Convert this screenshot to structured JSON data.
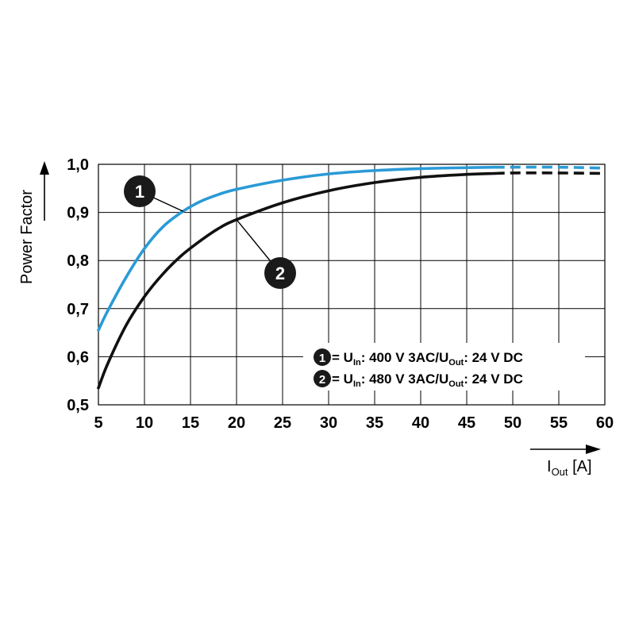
{
  "chart_data": {
    "type": "line",
    "xlabel": "I",
    "xlabel_sub": "Out",
    "xlabel_unit": " [A]",
    "ylabel": "Power Factor",
    "xlim": [
      5,
      60
    ],
    "ylim": [
      0.5,
      1.0
    ],
    "x_ticks": [
      "5",
      "10",
      "15",
      "20",
      "25",
      "30",
      "35",
      "40",
      "45",
      "50",
      "55",
      "60"
    ],
    "y_ticks": [
      "0,5",
      "0,6",
      "0,7",
      "0,8",
      "0,9",
      "1,0"
    ],
    "grid": true,
    "solid_until_x": 48,
    "series": [
      {
        "name": "1",
        "color": "#2a9ad6",
        "legend": {
          "num": "1",
          "prefix": " = U",
          "sub1": "In",
          "mid": ": 400 V 3AC/U",
          "sub2": "Out",
          "suffix": ": 24 V DC"
        },
        "x": [
          5,
          6,
          8,
          10,
          12,
          14,
          16,
          18,
          20,
          25,
          30,
          35,
          40,
          45,
          48,
          50,
          55,
          60
        ],
        "y": [
          0.655,
          0.695,
          0.765,
          0.825,
          0.87,
          0.9,
          0.922,
          0.937,
          0.948,
          0.967,
          0.98,
          0.987,
          0.991,
          0.993,
          0.994,
          0.994,
          0.994,
          0.992
        ]
      },
      {
        "name": "2",
        "color": "#111111",
        "legend": {
          "num": "2",
          "prefix": " = U",
          "sub1": "In",
          "mid": ": 480 V 3AC/U",
          "sub2": "Out",
          "suffix": ": 24 V DC"
        },
        "x": [
          5,
          6,
          8,
          10,
          12,
          14,
          16,
          18,
          20,
          25,
          30,
          35,
          40,
          45,
          48,
          50,
          55,
          60
        ],
        "y": [
          0.535,
          0.585,
          0.665,
          0.725,
          0.772,
          0.81,
          0.84,
          0.866,
          0.885,
          0.92,
          0.945,
          0.962,
          0.973,
          0.979,
          0.981,
          0.982,
          0.982,
          0.981
        ]
      }
    ],
    "callouts": [
      {
        "label": "1",
        "series": 0,
        "at_x": 14.2
      },
      {
        "label": "2",
        "series": 1,
        "at_x": 20.0
      }
    ]
  }
}
